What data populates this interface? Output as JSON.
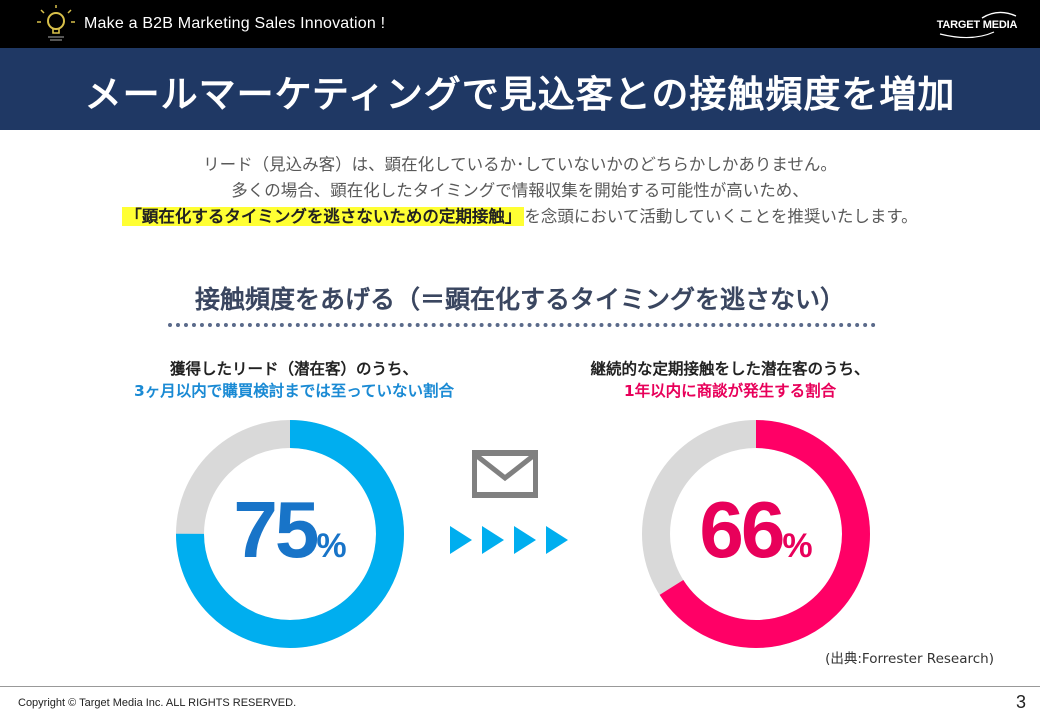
{
  "header": {
    "tagline": "Make a B2B Marketing Sales Innovation !",
    "brand": "TARGET MEDIA"
  },
  "title": "メールマーケティングで見込客との接触頻度を増加",
  "intro": {
    "line1": "リード（見込み客）は、顕在化しているか･していないかのどちらかしかありません。",
    "line2": "多くの場合、顕在化したタイミングで情報収集を開始する可能性が高いため、",
    "line3_highlight": "「顕在化するタイミングを逃さないための定期接触」",
    "line3_rest": "を念頭において活動していくことを推奨いたします。"
  },
  "subheading": "接触頻度をあげる（＝顕在化するタイミングを逃さない）",
  "stats": {
    "left": {
      "caption_line1": "獲得したリード（潜在客）のうち、",
      "caption_line2": "3ヶ月以内で購買検討までは至っていない割合",
      "value": 75,
      "value_text": "75",
      "unit": "%",
      "color": "#00aeef",
      "track_color": "#d9d9d9"
    },
    "right": {
      "caption_line1": "継続的な定期接触をした潜在客のうち、",
      "caption_line2": "1年以内に商談が発生する割合",
      "value": 66,
      "value_text": "66",
      "unit": "%",
      "color": "#ff0066",
      "track_color": "#d9d9d9"
    }
  },
  "icons": {
    "mail": "envelope-icon",
    "arrows": "triangle-arrows-icon",
    "bulb": "lightbulb-logo-icon"
  },
  "source": "(出典:Forrester Research)",
  "footer": {
    "copyright": "Copyright © Target Media Inc. ALL RIGHTS RESERVED.",
    "page": "3"
  }
}
